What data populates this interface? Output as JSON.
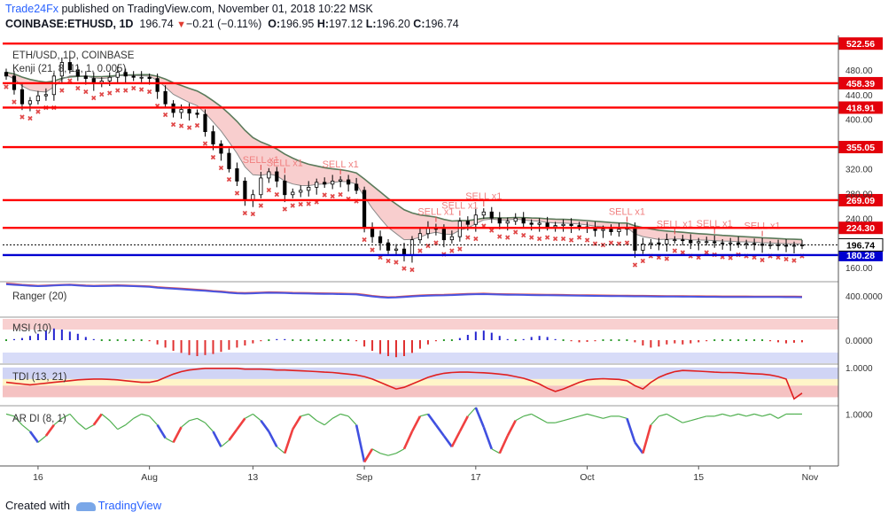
{
  "header": {
    "brand": "Trade24Fx",
    "published_text": "published on TradingView.com, November 01, 2018 10:22 MSK",
    "symbol": "COINBASE:ETHUSD, 1D",
    "last": "196.74",
    "change": "−0.21 (−0.11%)",
    "open_label": "O:",
    "open": "196.95",
    "high_label": "H:",
    "high": "197.12",
    "low_label": "L:",
    "low": "196.20",
    "close_label": "C:",
    "close": "196.74"
  },
  "footer": {
    "created_with": "Created with",
    "tradingview": "TradingView"
  },
  "colors": {
    "level_line": "#ff0000",
    "level_label_bg": "#e3000b",
    "blue_line": "#0000d0",
    "up_candle": "#ffffff",
    "down_candle": "#000000",
    "wick": "#000000",
    "sell_text": "#f08080",
    "sell_marker": "#e04848",
    "kenji_fill": "#f7c6c6",
    "kenji_line": "#5a7a5a",
    "ranger_red": "#e05050",
    "ranger_blue": "#4a55e0",
    "msi_up": "#2424d0",
    "msi_down": "#e03030",
    "msi_flat": "#2a9a2a",
    "tdi_line": "#e02020",
    "tdi_fill_red": "#f5c2c2",
    "tdi_fill_yellow": "#fff5c8",
    "tdi_fill_blue": "#d0d4f5",
    "ardi_green": "#50b050",
    "ardi_red": "#f04040",
    "ardi_blue": "#4050e0"
  },
  "chart_data": [
    {
      "type": "candlestick",
      "title": "ETH/USD, 1D, COINBASE",
      "indicator_label": "Kenji (21, 8, 11, 1, 0.005)",
      "ylim": [
        140,
        530
      ],
      "y_ticks": [
        "480.00",
        "440.00",
        "400.00",
        "320.00",
        "280.00",
        "240.00",
        "160.00"
      ],
      "y_tick_values": [
        480,
        440,
        400,
        320,
        280,
        240,
        160
      ],
      "x_ticks": [
        "16",
        "Aug",
        "13",
        "Sep",
        "17",
        "Oct",
        "15",
        "Nov"
      ],
      "x_tick_index": [
        4,
        18,
        31,
        45,
        59,
        73,
        87,
        101
      ],
      "levels": [
        {
          "value": 522.56,
          "label": "522.56",
          "kind": "resistance"
        },
        {
          "value": 458.39,
          "label": "458.39",
          "kind": "resistance"
        },
        {
          "value": 418.91,
          "label": "418.91",
          "kind": "resistance"
        },
        {
          "value": 355.05,
          "label": "355.05",
          "kind": "resistance"
        },
        {
          "value": 269.09,
          "label": "269.09",
          "kind": "resistance"
        },
        {
          "value": 224.3,
          "label": "224.30",
          "kind": "resistance"
        },
        {
          "value": 180.28,
          "label": "180.28",
          "kind": "support"
        }
      ],
      "last_price": {
        "value": 196.74,
        "label": "196.74"
      },
      "closes": [
        470,
        448,
        425,
        430,
        438,
        440,
        470,
        492,
        480,
        470,
        466,
        458,
        462,
        468,
        476,
        470,
        468,
        468,
        466,
        445,
        425,
        411,
        416,
        410,
        408,
        380,
        360,
        345,
        320,
        300,
        270,
        278,
        305,
        315,
        300,
        278,
        282,
        285,
        290,
        298,
        295,
        300,
        302,
        295,
        285,
        225,
        210,
        200,
        188,
        190,
        180,
        205,
        215,
        225,
        222,
        205,
        210,
        235,
        230,
        245,
        250,
        240,
        232,
        235,
        240,
        232,
        230,
        232,
        226,
        228,
        230,
        228,
        226,
        224,
        220,
        222,
        218,
        222,
        225,
        188,
        198,
        200,
        198,
        205,
        205,
        204,
        200,
        202,
        202,
        200,
        199,
        200,
        198,
        199,
        198,
        196,
        197,
        196,
        195,
        196,
        196.74
      ],
      "sell_signals": [
        {
          "index": 32,
          "label": "SELL x1"
        },
        {
          "index": 35,
          "label": "SELL x1"
        },
        {
          "index": 42,
          "label": "SELL x1"
        },
        {
          "index": 54,
          "label": "SELL x1"
        },
        {
          "index": 57,
          "label": "SELL x1"
        },
        {
          "index": 60,
          "label": "SELL x1"
        },
        {
          "index": 78,
          "label": "SELL x1"
        },
        {
          "index": 84,
          "label": "SELL x1"
        },
        {
          "index": 89,
          "label": "SELL x1"
        },
        {
          "index": 95,
          "label": "SELL x1"
        }
      ]
    },
    {
      "type": "line",
      "label": "Ranger (20)",
      "y_tick": "400.0000",
      "ylim": [
        0,
        600
      ],
      "series": [
        {
          "name": "",
          "values": [
            600,
            590,
            575,
            565,
            555,
            560,
            568,
            575,
            580,
            570,
            560,
            555,
            558,
            562,
            565,
            560,
            555,
            550,
            545,
            530,
            520,
            510,
            500,
            490,
            480,
            470,
            455,
            445,
            430,
            420,
            415,
            420,
            425,
            430,
            428,
            425,
            420,
            418,
            415,
            412,
            410,
            408,
            405,
            402,
            398,
            380,
            360,
            345,
            335,
            340,
            350,
            360,
            368,
            375,
            378,
            380,
            385,
            392,
            398,
            402,
            405,
            400,
            395,
            392,
            390,
            388,
            386,
            384,
            382,
            380,
            378,
            376,
            374,
            372,
            370,
            368,
            366,
            365,
            364,
            362,
            361,
            360,
            358,
            357,
            356,
            355,
            354,
            353,
            352,
            351,
            350,
            350,
            349,
            349,
            348,
            348,
            347,
            347,
            346,
            346,
            345
          ]
        },
        {
          "name": "",
          "values": [
            585,
            575,
            565,
            555,
            548,
            552,
            560,
            568,
            572,
            562,
            552,
            548,
            550,
            554,
            557,
            552,
            548,
            542,
            537,
            520,
            508,
            498,
            488,
            478,
            468,
            458,
            445,
            435,
            420,
            410,
            405,
            410,
            415,
            420,
            418,
            415,
            410,
            408,
            405,
            402,
            400,
            398,
            395,
            392,
            388,
            368,
            350,
            335,
            325,
            330,
            340,
            350,
            358,
            365,
            368,
            370,
            375,
            382,
            388,
            392,
            395,
            390,
            385,
            382,
            380,
            378,
            376,
            374,
            372,
            370,
            368,
            366,
            364,
            362,
            360,
            358,
            356,
            355,
            354,
            352,
            351,
            350,
            348,
            347,
            346,
            345,
            344,
            343,
            342,
            341,
            340,
            340,
            339,
            339,
            338,
            338,
            337,
            337,
            336,
            336,
            335
          ]
        }
      ]
    },
    {
      "type": "bar",
      "label": "MSI (10)",
      "y_tick": "0.0000",
      "ylim": [
        -1,
        1
      ],
      "values": [
        0,
        0.05,
        0.1,
        0.2,
        0.3,
        0.45,
        0.55,
        0.5,
        0.4,
        0.3,
        0.15,
        0.05,
        0.02,
        0,
        -0.02,
        0,
        0.02,
        0,
        -0.05,
        -0.2,
        -0.35,
        -0.5,
        -0.6,
        -0.7,
        -0.75,
        -0.7,
        -0.65,
        -0.55,
        -0.45,
        -0.35,
        -0.25,
        -0.15,
        -0.05,
        0.02,
        0.05,
        0.05,
        0.02,
        0,
        -0.02,
        0,
        0.02,
        0.03,
        0.02,
        0,
        -0.05,
        -0.3,
        -0.5,
        -0.65,
        -0.75,
        -0.8,
        -0.75,
        -0.6,
        -0.4,
        -0.2,
        -0.05,
        0,
        0.02,
        0.1,
        0.25,
        0.4,
        0.45,
        0.35,
        0.2,
        0.05,
        0,
        0.05,
        0.15,
        0.2,
        0.15,
        0.05,
        0,
        -0.05,
        -0.1,
        -0.08,
        -0.05,
        -0.02,
        0,
        0.02,
        0,
        -0.1,
        -0.25,
        -0.35,
        -0.3,
        -0.2,
        -0.15,
        -0.2,
        -0.15,
        -0.1,
        -0.05,
        -0.02,
        0,
        0.02,
        0.03,
        0.02,
        0,
        -0.02,
        -0.05,
        -0.1,
        -0.15,
        -0.12,
        -0.1
      ]
    },
    {
      "type": "line",
      "label": "TDI (13, 21)",
      "y_tick": "1.0000",
      "ylim": [
        -1.1,
        1.1
      ],
      "values": [
        0.1,
        0.05,
        0,
        -0.05,
        0,
        0.05,
        0.1,
        0.15,
        0.2,
        0.25,
        0.28,
        0.3,
        0.3,
        0.28,
        0.25,
        0.2,
        0.15,
        0.1,
        0.1,
        0.2,
        0.4,
        0.6,
        0.75,
        0.85,
        0.9,
        0.95,
        0.95,
        0.95,
        0.95,
        0.95,
        0.9,
        0.9,
        0.9,
        0.88,
        0.85,
        0.85,
        0.82,
        0.8,
        0.78,
        0.75,
        0.72,
        0.7,
        0.65,
        0.6,
        0.55,
        0.45,
        0.3,
        0.1,
        -0.1,
        -0.3,
        -0.2,
        0,
        0.2,
        0.4,
        0.55,
        0.65,
        0.7,
        0.72,
        0.72,
        0.7,
        0.68,
        0.65,
        0.6,
        0.55,
        0.45,
        0.35,
        0.2,
        0,
        -0.25,
        -0.45,
        -0.3,
        -0.1,
        0.1,
        0.25,
        0.3,
        0.32,
        0.3,
        0.28,
        0.2,
        -0.1,
        -0.3,
        0.1,
        0.4,
        0.6,
        0.75,
        0.82,
        0.8,
        0.78,
        0.75,
        0.72,
        0.7,
        0.7,
        0.68,
        0.65,
        0.62,
        0.6,
        0.55,
        0.45,
        0.3,
        -0.9,
        -0.55
      ]
    },
    {
      "type": "line",
      "label": "AR DI (8, 1)",
      "y_tick": "1.0000",
      "ylim": [
        -1.3,
        1.3
      ],
      "values": [
        1,
        0.9,
        0.5,
        0.2,
        -0.3,
        0,
        0.5,
        0.8,
        1,
        0.6,
        0.3,
        0.5,
        1,
        0.7,
        0.3,
        0.5,
        0.8,
        1,
        0.9,
        0.5,
        -0.1,
        -0.3,
        0.4,
        0.7,
        0.8,
        0.6,
        0.2,
        -0.5,
        -0.2,
        0.3,
        0.8,
        1,
        0.7,
        0.2,
        -0.5,
        -0.8,
        0.3,
        0.9,
        1,
        0.7,
        0.5,
        0.8,
        1,
        0.9,
        0.5,
        -1.2,
        -0.6,
        -0.8,
        -0.9,
        -0.8,
        -0.6,
        0.2,
        0.9,
        1,
        0.5,
        0,
        -0.5,
        0.2,
        0.9,
        1.3,
        0.4,
        -0.6,
        -0.8,
        0,
        0.7,
        0.9,
        1,
        0.8,
        0.6,
        0.6,
        0.7,
        0.8,
        0.9,
        1,
        0.9,
        0.8,
        0.9,
        0.9,
        0.8,
        -0.3,
        -0.8,
        0.5,
        0.9,
        1,
        0.8,
        0.6,
        0.7,
        0.8,
        0.9,
        0.9,
        1,
        0.9,
        1,
        0.9,
        1,
        0.9,
        1,
        0.8,
        1,
        1,
        1
      ]
    }
  ]
}
